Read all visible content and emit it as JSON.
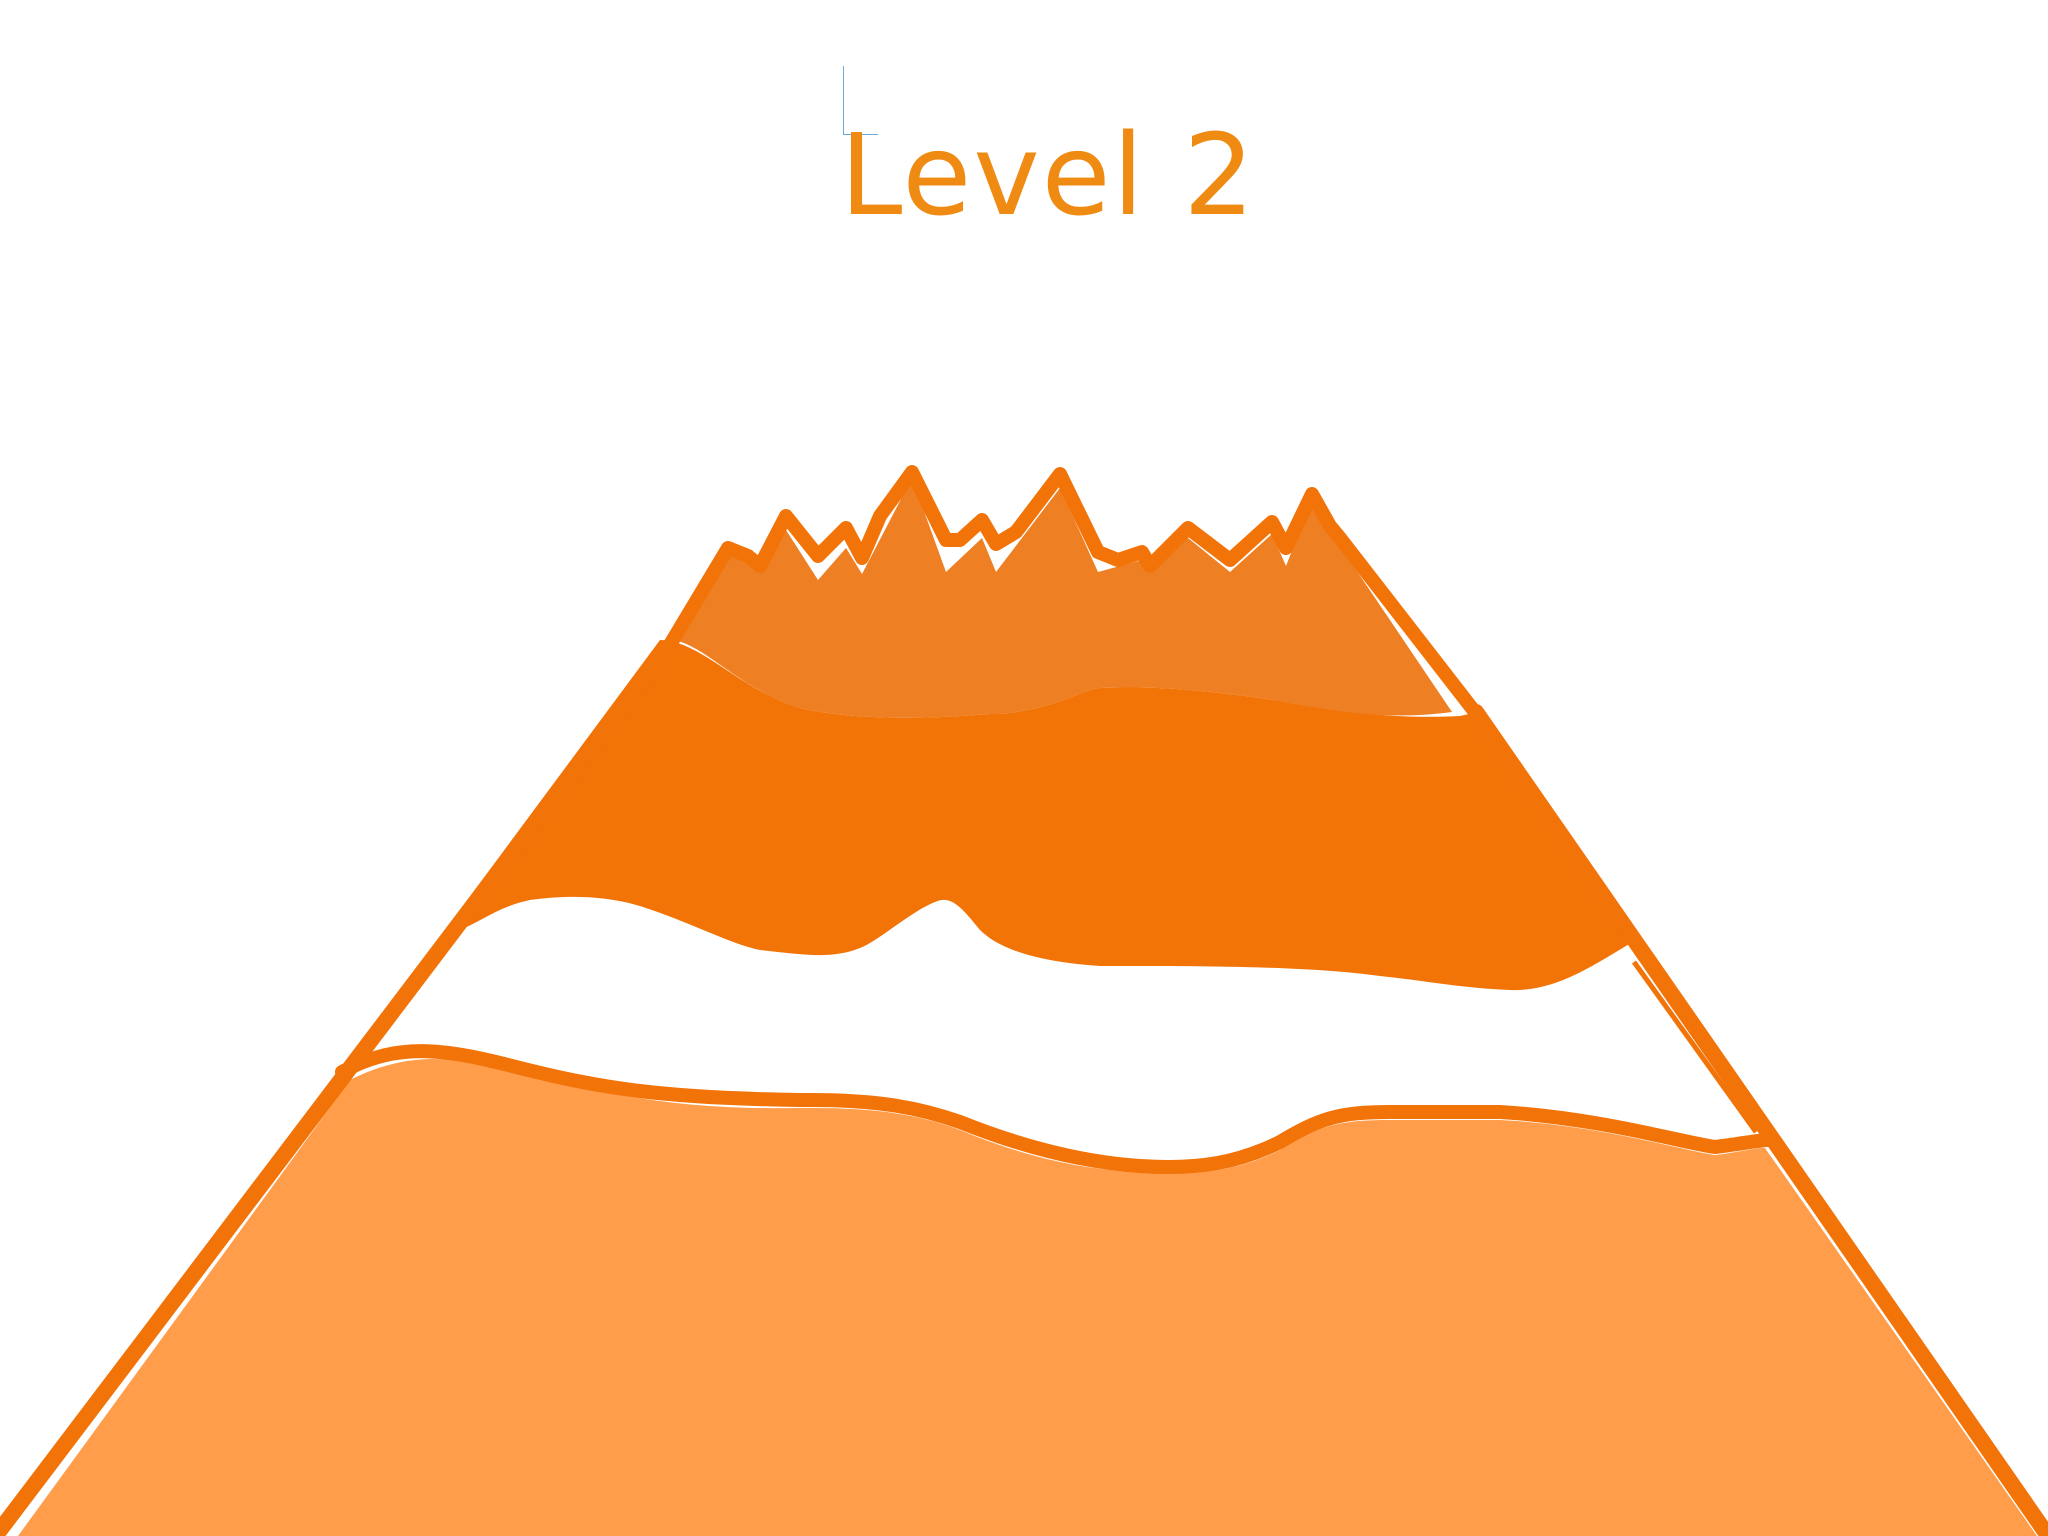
{
  "level": {
    "title": "Level 2"
  },
  "colors": {
    "background": "#ffffff",
    "title": "#ef8a12",
    "outline": "#f27308",
    "summit_fill": "#ee7f22",
    "upper_band": "#f27306",
    "lower_band": "#ff9d4b",
    "cursor_marker": "#6aa9d8"
  },
  "scene": {
    "mountain": "volcano",
    "layers": [
      "summit-cap",
      "upper-band",
      "white-gap",
      "lower-band"
    ]
  }
}
